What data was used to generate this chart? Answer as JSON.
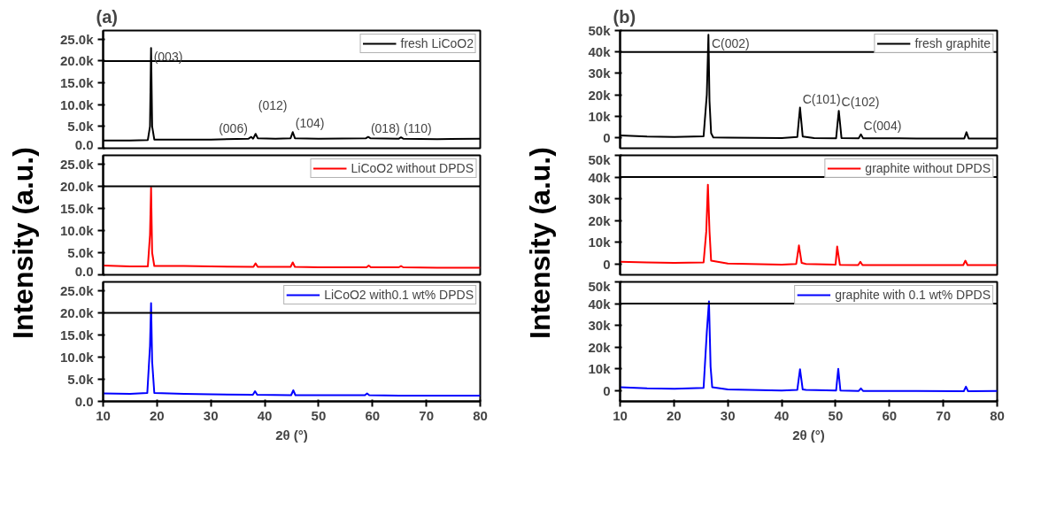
{
  "chart_data": [
    {
      "type": "line",
      "title": "(a)",
      "xlim": [
        10,
        80
      ],
      "ylim": [
        0,
        27000
      ],
      "yticks": [
        {
          "value": 0,
          "label": "0.0"
        },
        {
          "value": 5000,
          "label": "5.0k"
        },
        {
          "value": 10000,
          "label": "10.0k"
        },
        {
          "value": 15000,
          "label": "15.0k"
        },
        {
          "value": 20000,
          "label": "20.0k"
        },
        {
          "value": 25000,
          "label": "25.0k"
        }
      ],
      "tick_labels": "y",
      "legend": "top right",
      "ref_lines": [
        {
          "axis": "y",
          "value": 20000
        }
      ],
      "annotations": [
        {
          "text": "(003)",
          "x": 18.9,
          "y": 23000
        },
        {
          "text": "(006)",
          "x": 37.5,
          "y": 2600
        },
        {
          "text": "(012)",
          "x": 38.3,
          "y": 3300
        },
        {
          "text": "(104)",
          "x": 45.2,
          "y": 3700
        },
        {
          "text": "(018)",
          "x": 59.2,
          "y": 2600
        },
        {
          "text": "(110)",
          "x": 65.3,
          "y": 2500
        }
      ],
      "series": [
        {
          "name": "fresh LiCoO2",
          "color": "#000000",
          "x": [
            10,
            15,
            18.3,
            18.7,
            18.9,
            19.1,
            19.5,
            25,
            30,
            37.0,
            37.5,
            37.8,
            37.9,
            38.3,
            38.7,
            42,
            44.8,
            45.2,
            45.6,
            50,
            58.8,
            59.2,
            59.6,
            64.9,
            65.3,
            65.7,
            72,
            80
          ],
          "values": [
            1800,
            1800,
            1900,
            5000,
            23000,
            5000,
            2000,
            2000,
            2000,
            2200,
            2600,
            2200,
            2300,
            3300,
            2300,
            2200,
            2300,
            3700,
            2300,
            2200,
            2300,
            2600,
            2300,
            2200,
            2500,
            2200,
            2100,
            2200
          ]
        }
      ]
    },
    {
      "type": "line",
      "ylabel": "Intensity (a.u.)",
      "xlim": [
        10,
        80
      ],
      "ylim": [
        0,
        27000
      ],
      "yticks": [
        {
          "value": 0,
          "label": "0.0"
        },
        {
          "value": 5000,
          "label": "5.0k"
        },
        {
          "value": 10000,
          "label": "10.0k"
        },
        {
          "value": 15000,
          "label": "15.0k"
        },
        {
          "value": 20000,
          "label": "20.0k"
        },
        {
          "value": 25000,
          "label": "25.0k"
        }
      ],
      "tick_labels": "y",
      "legend": "top right",
      "ref_lines": [
        {
          "axis": "y",
          "value": 20000
        }
      ],
      "series": [
        {
          "name": "LiCoO2 without DPDS",
          "color": "#ff0000",
          "x": [
            10,
            15,
            18.3,
            18.7,
            18.9,
            19.1,
            19.5,
            25,
            30,
            37.9,
            38.3,
            38.7,
            44.8,
            45.2,
            45.6,
            50,
            58.9,
            59.3,
            59.7,
            64.9,
            65.3,
            65.7,
            72,
            80
          ],
          "values": [
            2100,
            1900,
            1900,
            9000,
            19700,
            5000,
            2000,
            2000,
            1900,
            1800,
            2600,
            1800,
            1800,
            2800,
            1800,
            1700,
            1700,
            2100,
            1700,
            1700,
            2000,
            1700,
            1600,
            1600
          ]
        }
      ]
    },
    {
      "type": "line",
      "xlabel": "2θ (°)",
      "xlim": [
        10,
        80
      ],
      "ylim": [
        0,
        27000
      ],
      "xticks": [
        10,
        20,
        30,
        40,
        50,
        60,
        70,
        80
      ],
      "yticks": [
        {
          "value": 0,
          "label": "0.0"
        },
        {
          "value": 5000,
          "label": "5.0k"
        },
        {
          "value": 10000,
          "label": "10.0k"
        },
        {
          "value": 15000,
          "label": "15.0k"
        },
        {
          "value": 20000,
          "label": "20.0k"
        },
        {
          "value": 25000,
          "label": "25.0k"
        }
      ],
      "legend": "top right",
      "ref_lines": [
        {
          "axis": "y",
          "value": 20000
        }
      ],
      "series": [
        {
          "name": "LiCoO2 with0.1 wt% DPDS",
          "color": "#0000ff",
          "x": [
            10,
            15,
            18.2,
            18.7,
            18.9,
            19.1,
            19.5,
            25,
            30,
            37.8,
            38.2,
            38.6,
            44.9,
            45.3,
            45.7,
            50,
            58.6,
            59.0,
            59.4,
            65,
            72,
            80
          ],
          "values": [
            1800,
            1700,
            1900,
            12500,
            22200,
            9000,
            1900,
            1700,
            1600,
            1500,
            2300,
            1500,
            1400,
            2500,
            1400,
            1400,
            1400,
            1800,
            1400,
            1300,
            1300,
            1300
          ]
        }
      ]
    },
    {
      "type": "line",
      "title": "(b)",
      "xlim": [
        10,
        80
      ],
      "ylim": [
        -5000,
        50000
      ],
      "yticks": [
        {
          "value": 0,
          "label": "0"
        },
        {
          "value": 10000,
          "label": "10k"
        },
        {
          "value": 20000,
          "label": "20k"
        },
        {
          "value": 30000,
          "label": "30k"
        },
        {
          "value": 40000,
          "label": "40k"
        },
        {
          "value": 50000,
          "label": "50k"
        }
      ],
      "tick_labels": "y",
      "legend": "top right",
      "ref_lines": [
        {
          "axis": "y",
          "value": 40000
        }
      ],
      "annotations": [
        {
          "text": "C(002)",
          "x": 26.5,
          "y": 48000
        },
        {
          "text": "C(101)",
          "x": 43.4,
          "y": 14000
        },
        {
          "text": "C(102)",
          "x": 50.6,
          "y": 12500
        },
        {
          "text": "C(004)",
          "x": 54.7,
          "y": 1500
        }
      ],
      "series": [
        {
          "name": "fresh graphite",
          "color": "#000000",
          "x": [
            10,
            15,
            20,
            25.5,
            26.1,
            26.4,
            26.6,
            26.9,
            27.3,
            30,
            40,
            42.9,
            43.4,
            43.9,
            46,
            50.1,
            50.6,
            51.1,
            54.3,
            54.7,
            55.1,
            65,
            73.9,
            74.3,
            74.7,
            80
          ],
          "values": [
            1000,
            500,
            300,
            600,
            20000,
            48000,
            17000,
            2000,
            100,
            0,
            -200,
            300,
            14000,
            500,
            -200,
            -300,
            12500,
            -200,
            -300,
            1500,
            -300,
            -400,
            -400,
            2500,
            -400,
            -500
          ]
        }
      ]
    },
    {
      "type": "line",
      "ylabel": "Intensity (a.u.)",
      "xlim": [
        10,
        80
      ],
      "ylim": [
        -5000,
        50000
      ],
      "yticks": [
        {
          "value": 0,
          "label": "0"
        },
        {
          "value": 10000,
          "label": "10k"
        },
        {
          "value": 20000,
          "label": "20k"
        },
        {
          "value": 30000,
          "label": "30k"
        },
        {
          "value": 40000,
          "label": "40k"
        },
        {
          "value": 50000,
          "label": "50k"
        }
      ],
      "tick_labels": "y",
      "legend": "top right",
      "ref_lines": [
        {
          "axis": "y",
          "value": 40000
        }
      ],
      "series": [
        {
          "name": "graphite without DPDS",
          "color": "#ff0000",
          "x": [
            10,
            15,
            20,
            25.5,
            26.0,
            26.3,
            26.6,
            26.9,
            30,
            40,
            42.7,
            43.2,
            43.7,
            44.5,
            50.0,
            50.3,
            50.8,
            54.2,
            54.6,
            55.0,
            65,
            73.7,
            74.1,
            74.5,
            80
          ],
          "values": [
            1000,
            700,
            500,
            700,
            15000,
            36500,
            15000,
            1500,
            200,
            -300,
            0,
            8500,
            500,
            0,
            -300,
            8000,
            -400,
            -500,
            1000,
            -500,
            -500,
            -500,
            1500,
            -500,
            -500
          ]
        }
      ]
    },
    {
      "type": "line",
      "xlabel": "2θ (°)",
      "xlim": [
        10,
        80
      ],
      "ylim": [
        -5000,
        50000
      ],
      "xticks": [
        10,
        20,
        30,
        40,
        50,
        60,
        70,
        80
      ],
      "yticks": [
        {
          "value": 0,
          "label": "0"
        },
        {
          "value": 10000,
          "label": "10k"
        },
        {
          "value": 20000,
          "label": "20k"
        },
        {
          "value": 30000,
          "label": "30k"
        },
        {
          "value": 40000,
          "label": "40k"
        },
        {
          "value": 50000,
          "label": "50k"
        }
      ],
      "legend": "top right",
      "ref_lines": [
        {
          "axis": "y",
          "value": 40000
        }
      ],
      "series": [
        {
          "name": "graphite with 0.1 wt% DPDS",
          "color": "#0000ff",
          "x": [
            10,
            15,
            20,
            25.5,
            26.1,
            26.5,
            26.8,
            27.1,
            30,
            40,
            42.9,
            43.4,
            43.9,
            44.5,
            50.1,
            50.5,
            50.9,
            54.3,
            54.7,
            55.1,
            65,
            73.8,
            74.2,
            74.6,
            80
          ],
          "values": [
            1500,
            1000,
            800,
            1200,
            27000,
            41000,
            11000,
            1500,
            500,
            0,
            300,
            9800,
            500,
            300,
            0,
            10000,
            0,
            -200,
            1000,
            -200,
            -200,
            -300,
            1800,
            -300,
            -200
          ]
        }
      ]
    }
  ]
}
